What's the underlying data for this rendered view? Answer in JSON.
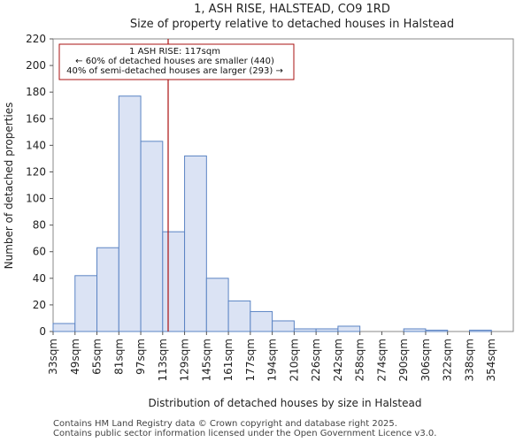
{
  "chart_data": {
    "type": "bar",
    "title_line1": "1, ASH RISE, HALSTEAD, CO9 1RD",
    "title_line2": "Size of property relative to detached houses in Halstead",
    "xlabel": "Distribution of detached houses by size in Halstead",
    "ylabel": "Number of detached properties",
    "categories": [
      "33sqm",
      "49sqm",
      "65sqm",
      "81sqm",
      "97sqm",
      "113sqm",
      "129sqm",
      "145sqm",
      "161sqm",
      "177sqm",
      "194sqm",
      "210sqm",
      "226sqm",
      "242sqm",
      "258sqm",
      "274sqm",
      "290sqm",
      "306sqm",
      "322sqm",
      "338sqm",
      "354sqm"
    ],
    "values": [
      6,
      42,
      63,
      177,
      143,
      75,
      132,
      40,
      23,
      15,
      8,
      2,
      2,
      4,
      0,
      0,
      2,
      1,
      0,
      1,
      0
    ],
    "ylim": [
      0,
      220
    ],
    "yticks": [
      0,
      20,
      40,
      60,
      80,
      100,
      120,
      140,
      160,
      180,
      200,
      220
    ],
    "bar_fill": "#dbe3f4",
    "bar_stroke": "#5b84c4",
    "marker": {
      "value_index": 5.25,
      "color": "#aa1111",
      "lines": [
        "1 ASH RISE: 117sqm",
        "← 60% of detached houses are smaller (440)",
        "40% of semi-detached houses are larger (293) →"
      ]
    }
  },
  "footer": {
    "line1": "Contains HM Land Registry data © Crown copyright and database right 2025.",
    "line2": "Contains public sector information licensed under the Open Government Licence v3.0."
  }
}
